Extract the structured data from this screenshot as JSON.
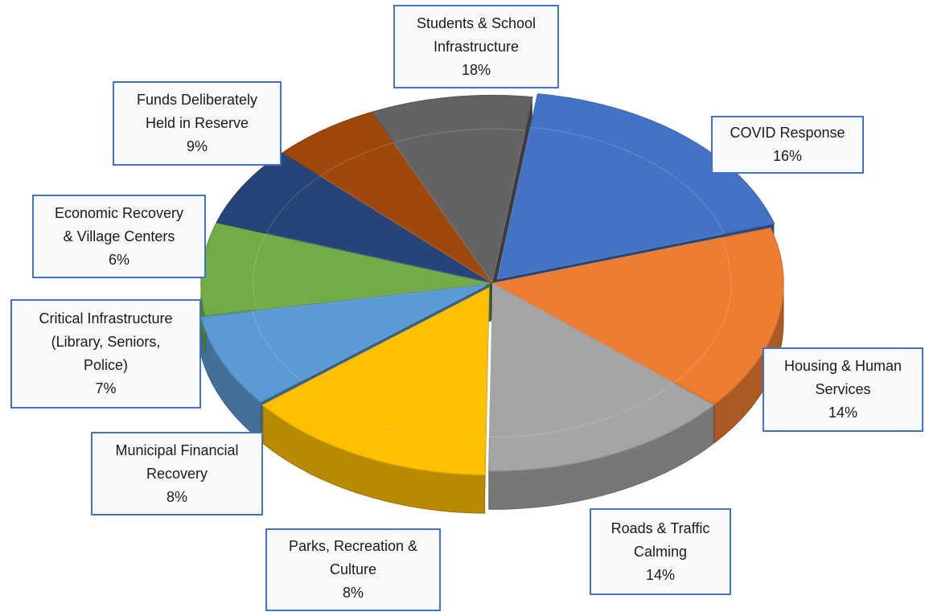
{
  "chart_data": {
    "type": "pie",
    "title": "",
    "variant": "3d exploded",
    "categories": [
      "Students & School Infrastructure",
      "COVID Response",
      "Housing & Human Services",
      "Roads & Traffic Calming",
      "Parks, Recreation & Culture",
      "Municipal Financial Recovery",
      "Critical Infrastructure (Library, Seniors, Police)",
      "Economic Recovery & Village Centers",
      "Funds Deliberately Held in Reserve"
    ],
    "values": [
      18,
      16,
      14,
      14,
      8,
      8,
      7,
      6,
      9
    ],
    "colors": [
      "#4472c4",
      "#ed7d31",
      "#a5a5a5",
      "#ffc000",
      "#5b9bd5",
      "#70ad47",
      "#264478",
      "#9e480e",
      "#636363"
    ],
    "label_border_color": "#4472c4",
    "labels": [
      {
        "lines": [
          "Students & School",
          "Infrastructure"
        ],
        "pct": "18%"
      },
      {
        "lines": [
          "COVID Response"
        ],
        "pct": "16%"
      },
      {
        "lines": [
          "Housing & Human",
          "Services"
        ],
        "pct": "14%"
      },
      {
        "lines": [
          "Roads & Traffic",
          "Calming"
        ],
        "pct": "14%"
      },
      {
        "lines": [
          "Parks, Recreation &",
          "Culture"
        ],
        "pct": "8%"
      },
      {
        "lines": [
          "Municipal Financial",
          "Recovery"
        ],
        "pct": "8%"
      },
      {
        "lines": [
          "Critical Infrastructure",
          "(Library, Seniors,",
          "Police)"
        ],
        "pct": "7%"
      },
      {
        "lines": [
          "Economic Recovery",
          "& Village Centers"
        ],
        "pct": "6%"
      },
      {
        "lines": [
          "Funds Deliberately",
          "Held in Reserve"
        ],
        "pct": "9%"
      }
    ]
  }
}
